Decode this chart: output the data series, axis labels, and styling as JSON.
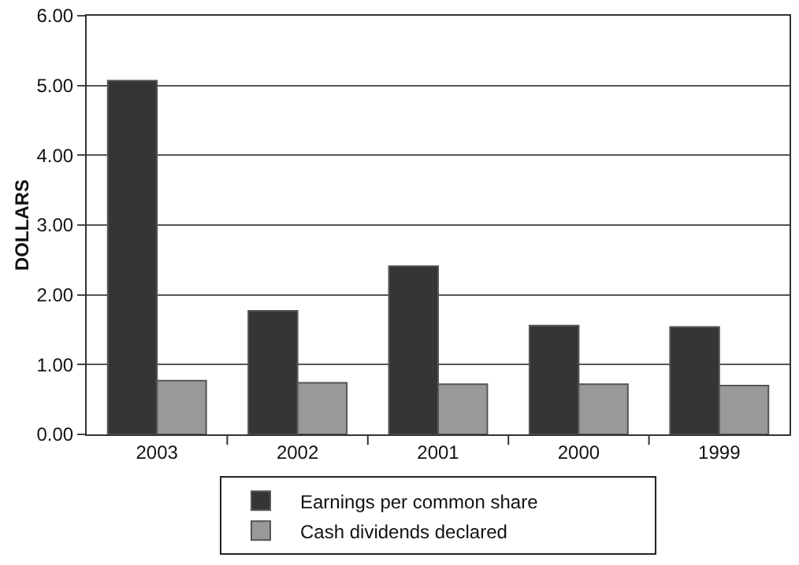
{
  "chart_data": {
    "type": "bar",
    "ylabel": "DOLLARS",
    "categories": [
      "2003",
      "2002",
      "2001",
      "2000",
      "1999"
    ],
    "series": [
      {
        "name": "Earnings per common share",
        "color": "#363435",
        "values": [
          5.07,
          1.77,
          2.41,
          1.56,
          1.54
        ]
      },
      {
        "name": "Cash dividends declared",
        "color": "#98999b",
        "values": [
          0.77,
          0.74,
          0.72,
          0.72,
          0.7
        ]
      }
    ],
    "ylim": [
      0,
      6
    ],
    "yticks": [
      {
        "value": 0,
        "label": "0.00"
      },
      {
        "value": 1,
        "label": "1.00"
      },
      {
        "value": 2,
        "label": "2.00"
      },
      {
        "value": 3,
        "label": "3.00"
      },
      {
        "value": 4,
        "label": "4.00"
      },
      {
        "value": 5,
        "label": "5.00"
      },
      {
        "value": 6,
        "label": "6.00"
      }
    ],
    "grid": "y",
    "legend": "bottom"
  }
}
